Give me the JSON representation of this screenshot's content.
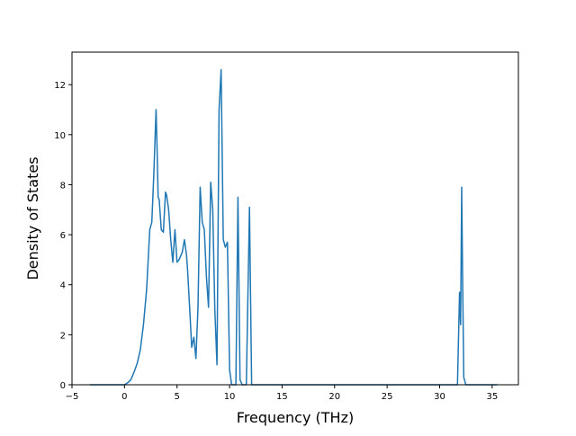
{
  "chart_data": {
    "type": "line",
    "title": "",
    "xlabel": "Frequency (THz)",
    "ylabel": "Density of States",
    "xlim": [
      -5.0,
      37.5
    ],
    "ylim": [
      0,
      13.3
    ],
    "xticks": [
      -5,
      0,
      5,
      10,
      15,
      20,
      25,
      30,
      35
    ],
    "yticks": [
      0,
      2,
      4,
      6,
      8,
      10,
      12
    ],
    "grid": false,
    "legend": "none",
    "series": [
      {
        "color": "#1f77b4",
        "x": [
          -3.3,
          -1.0,
          0.0,
          0.3,
          0.6,
          0.9,
          1.2,
          1.5,
          1.8,
          2.1,
          2.4,
          2.6,
          2.8,
          3.0,
          3.1,
          3.2,
          3.3,
          3.5,
          3.7,
          3.9,
          4.0,
          4.2,
          4.4,
          4.6,
          4.8,
          5.0,
          5.2,
          5.5,
          5.7,
          5.9,
          6.0,
          6.2,
          6.4,
          6.6,
          6.8,
          7.0,
          7.2,
          7.4,
          7.6,
          7.8,
          8.0,
          8.2,
          8.4,
          8.6,
          8.8,
          9.0,
          9.2,
          9.4,
          9.6,
          9.8,
          10.0,
          10.2,
          10.4,
          10.6,
          10.8,
          11.0,
          11.2,
          11.4,
          11.6,
          11.9,
          12.1,
          12.4,
          12.6,
          12.8,
          13.2,
          20.0,
          31.7,
          31.9,
          32.0,
          32.1,
          32.2,
          32.3,
          32.5,
          32.7,
          35.5
        ],
        "y": [
          0,
          0,
          0,
          0.08,
          0.2,
          0.5,
          0.85,
          1.4,
          2.4,
          3.8,
          6.2,
          6.5,
          8.5,
          11.0,
          9.5,
          7.5,
          7.4,
          6.2,
          6.1,
          7.7,
          7.6,
          7.0,
          5.8,
          4.9,
          6.2,
          4.9,
          5.0,
          5.3,
          5.8,
          5.2,
          4.6,
          3.1,
          1.5,
          1.9,
          1.05,
          3.1,
          7.9,
          6.5,
          6.2,
          4.3,
          3.1,
          8.1,
          7.0,
          3.0,
          0.8,
          11.0,
          12.6,
          5.8,
          5.5,
          5.7,
          0.6,
          0,
          0,
          0,
          7.5,
          0.2,
          0,
          0,
          0,
          7.1,
          0,
          0,
          0,
          0,
          0,
          0,
          0,
          3.7,
          2.4,
          7.9,
          4.0,
          0.3,
          0,
          0,
          0
        ]
      }
    ]
  }
}
